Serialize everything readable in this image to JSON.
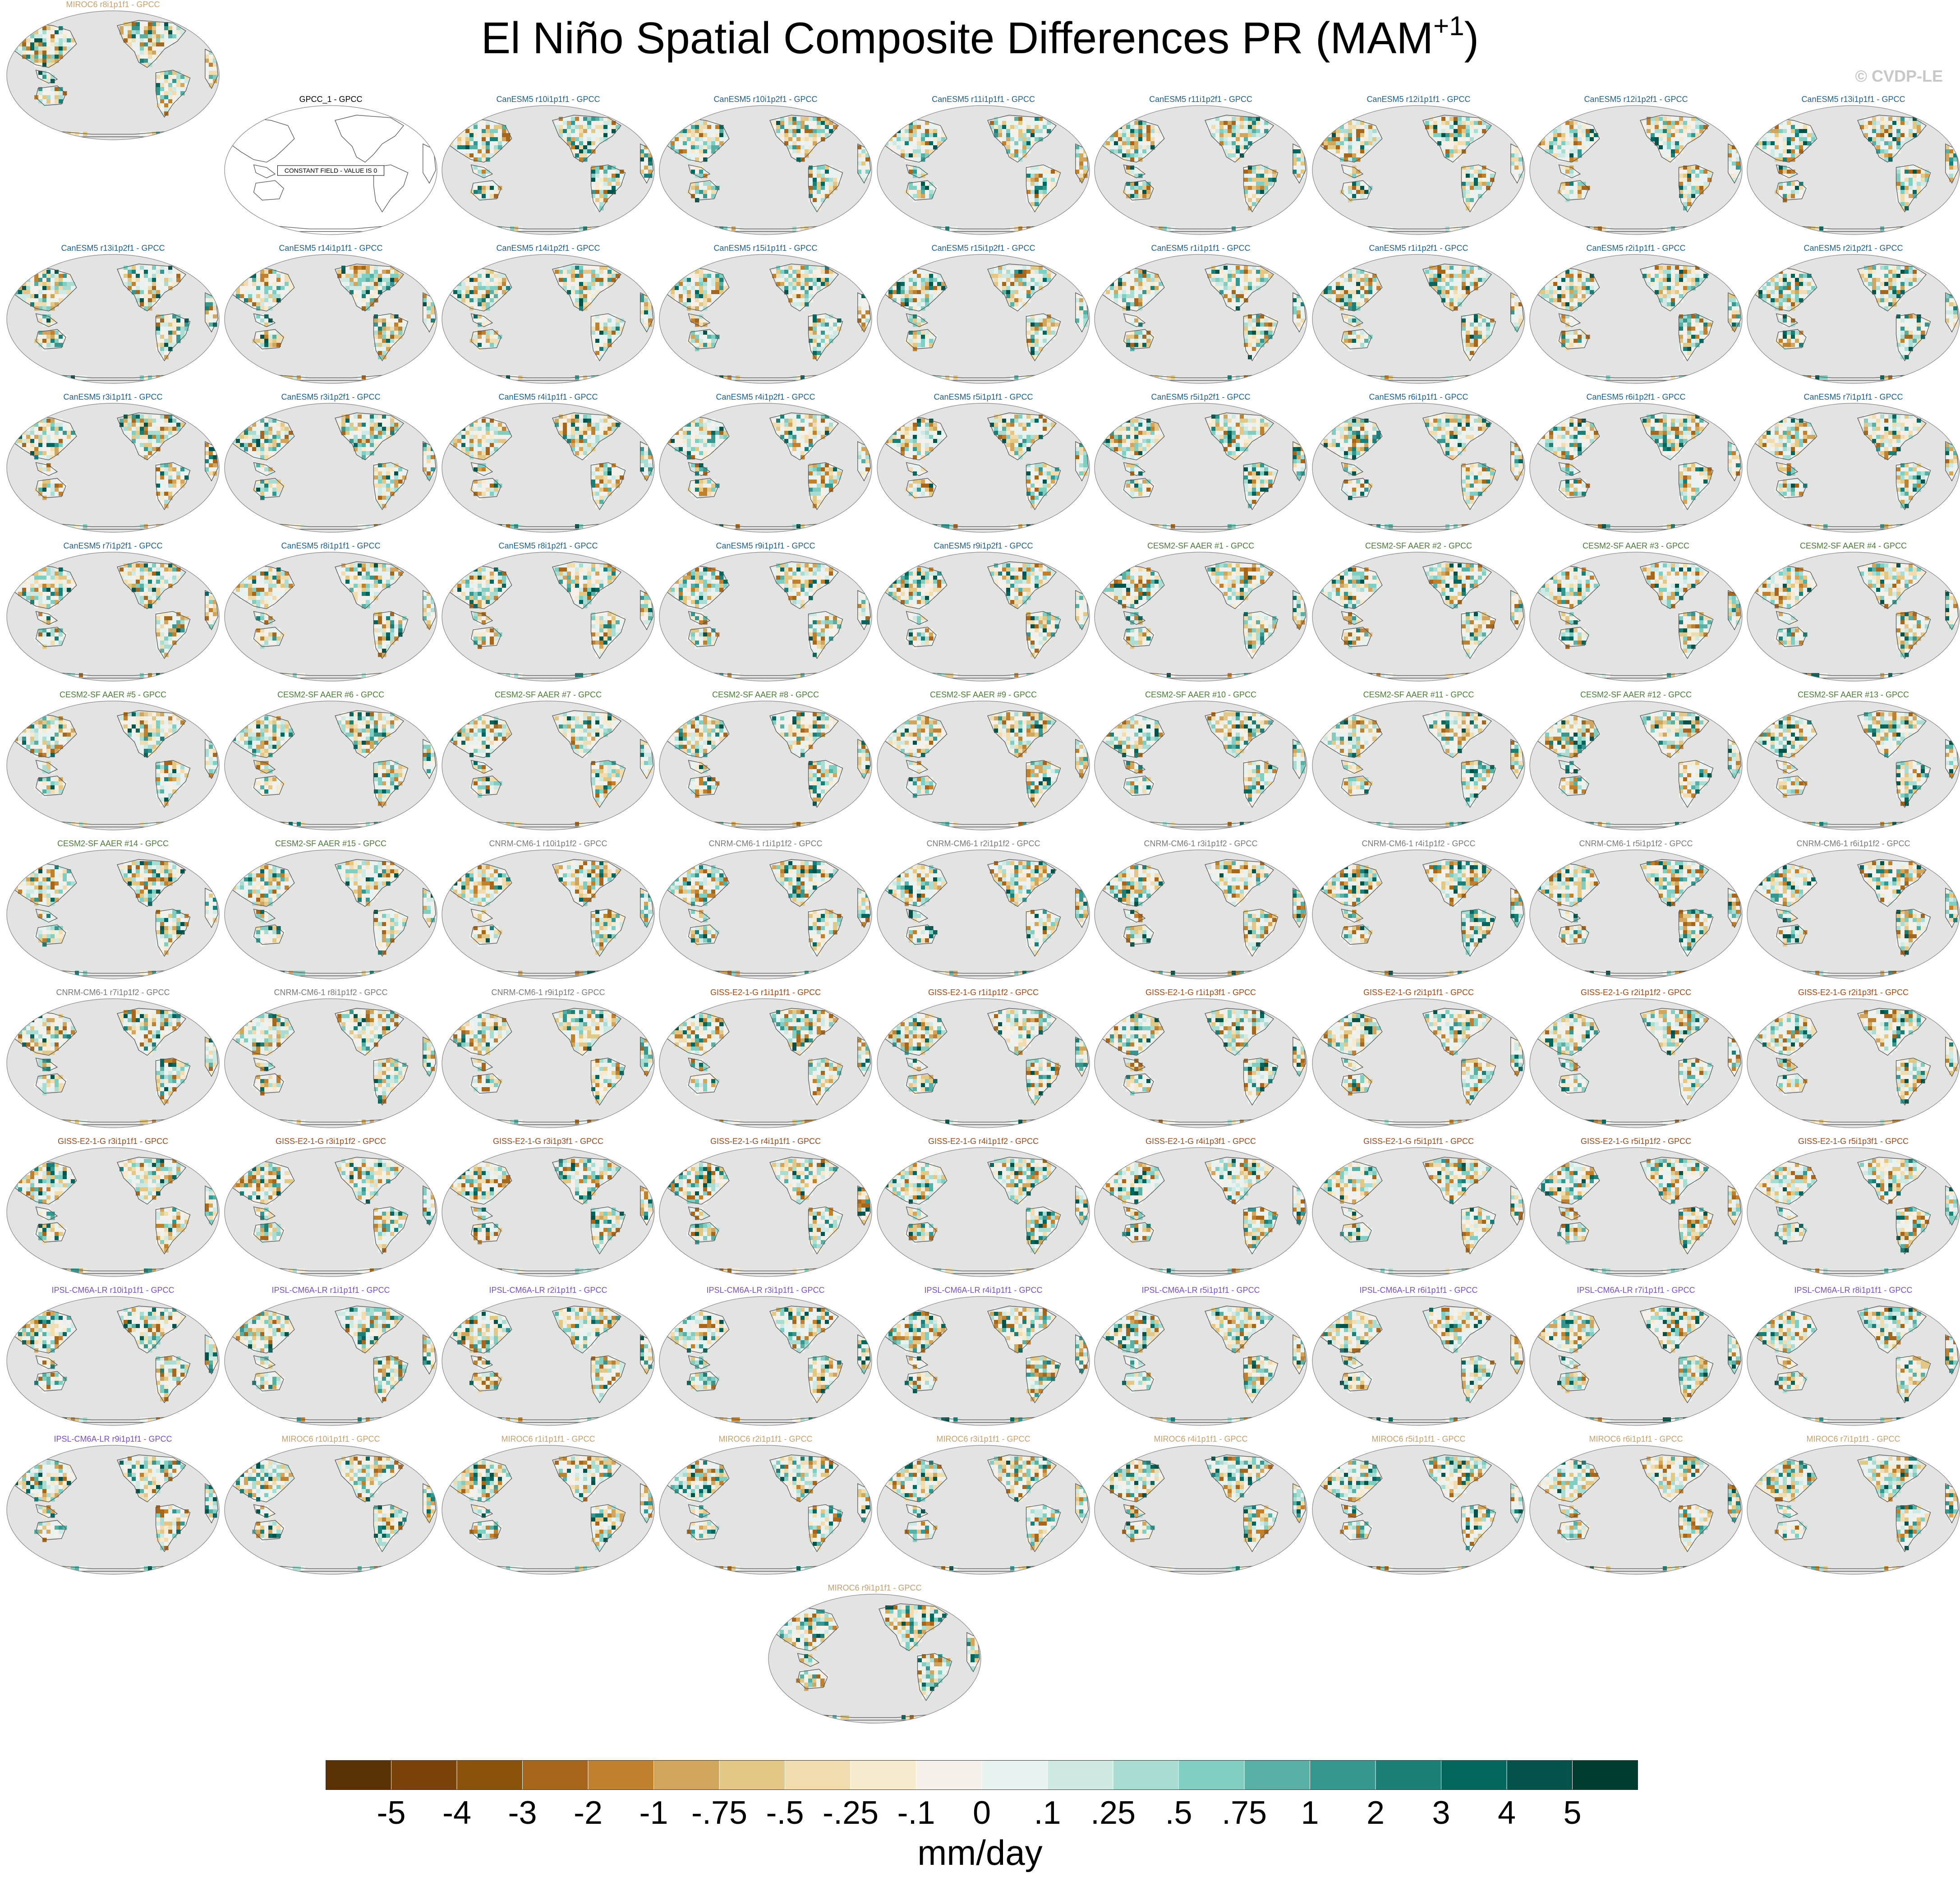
{
  "title": {
    "main": "El Niño Spatial Composite Differences PR (MAM",
    "superscript": "+1",
    "close": ")"
  },
  "watermark": "© CVDP-LE",
  "chart_data": {
    "type": "heatmap",
    "description_type": "map-panels",
    "units": "mm/day",
    "colorbar": {
      "tick_labels": [
        "-5",
        "-4",
        "-3",
        "-2",
        "-1",
        "-.75",
        "-.5",
        "-.25",
        "-.1",
        "0",
        ".1",
        ".25",
        ".5",
        ".75",
        "1",
        "2",
        "3",
        "4",
        "5"
      ],
      "colors": [
        "#5a3005",
        "#7a4208",
        "#8c510a",
        "#a6661b",
        "#bf812d",
        "#d2a55c",
        "#e3c785",
        "#f0dcae",
        "#f6ebcf",
        "#f5f0ea",
        "#e8f2f0",
        "#cfe9e4",
        "#a9dcd3",
        "#80cdc1",
        "#58b0a4",
        "#35978f",
        "#1c7f77",
        "#01665e",
        "#03534a",
        "#003c30"
      ]
    },
    "panels": [
      {
        "title": "GPCC_1 - GPCC",
        "group": "obs",
        "constant": true,
        "note": "CONSTANT FIELD - VALUE IS 0"
      },
      {
        "title": "CanESM5 r10i1p1f1 - GPCC",
        "group": "CanESM5"
      },
      {
        "title": "CanESM5 r10i1p2f1 - GPCC",
        "group": "CanESM5"
      },
      {
        "title": "CanESM5 r11i1p1f1 - GPCC",
        "group": "CanESM5"
      },
      {
        "title": "CanESM5 r11i1p2f1 - GPCC",
        "group": "CanESM5"
      },
      {
        "title": "CanESM5 r12i1p1f1 - GPCC",
        "group": "CanESM5"
      },
      {
        "title": "CanESM5 r12i1p2f1 - GPCC",
        "group": "CanESM5"
      },
      {
        "title": "CanESM5 r13i1p1f1 - GPCC",
        "group": "CanESM5"
      },
      {
        "title": "CanESM5 r13i1p2f1 - GPCC",
        "group": "CanESM5"
      },
      {
        "title": "CanESM5 r14i1p1f1 - GPCC",
        "group": "CanESM5"
      },
      {
        "title": "CanESM5 r14i1p2f1 - GPCC",
        "group": "CanESM5"
      },
      {
        "title": "CanESM5 r15i1p1f1 - GPCC",
        "group": "CanESM5"
      },
      {
        "title": "CanESM5 r15i1p2f1 - GPCC",
        "group": "CanESM5"
      },
      {
        "title": "CanESM5 r1i1p1f1 - GPCC",
        "group": "CanESM5"
      },
      {
        "title": "CanESM5 r1i1p2f1 - GPCC",
        "group": "CanESM5"
      },
      {
        "title": "CanESM5 r2i1p1f1 - GPCC",
        "group": "CanESM5"
      },
      {
        "title": "CanESM5 r2i1p2f1 - GPCC",
        "group": "CanESM5"
      },
      {
        "title": "CanESM5 r3i1p1f1 - GPCC",
        "group": "CanESM5"
      },
      {
        "title": "CanESM5 r3i1p2f1 - GPCC",
        "group": "CanESM5"
      },
      {
        "title": "CanESM5 r4i1p1f1 - GPCC",
        "group": "CanESM5"
      },
      {
        "title": "CanESM5 r4i1p2f1 - GPCC",
        "group": "CanESM5"
      },
      {
        "title": "CanESM5 r5i1p1f1 - GPCC",
        "group": "CanESM5"
      },
      {
        "title": "CanESM5 r5i1p2f1 - GPCC",
        "group": "CanESM5"
      },
      {
        "title": "CanESM5 r6i1p1f1 - GPCC",
        "group": "CanESM5"
      },
      {
        "title": "CanESM5 r6i1p2f1 - GPCC",
        "group": "CanESM5"
      },
      {
        "title": "CanESM5 r7i1p1f1 - GPCC",
        "group": "CanESM5"
      },
      {
        "title": "CanESM5 r7i1p2f1 - GPCC",
        "group": "CanESM5"
      },
      {
        "title": "CanESM5 r8i1p1f1 - GPCC",
        "group": "CanESM5"
      },
      {
        "title": "CanESM5 r8i1p2f1 - GPCC",
        "group": "CanESM5"
      },
      {
        "title": "CanESM5 r9i1p1f1 - GPCC",
        "group": "CanESM5"
      },
      {
        "title": "CanESM5 r9i1p2f1 - GPCC",
        "group": "CanESM5"
      },
      {
        "title": "CESM2-SF AAER #1 - GPCC",
        "group": "CESM2"
      },
      {
        "title": "CESM2-SF AAER #2 - GPCC",
        "group": "CESM2"
      },
      {
        "title": "CESM2-SF AAER #3 - GPCC",
        "group": "CESM2"
      },
      {
        "title": "CESM2-SF AAER #4 - GPCC",
        "group": "CESM2"
      },
      {
        "title": "CESM2-SF AAER #5 - GPCC",
        "group": "CESM2"
      },
      {
        "title": "CESM2-SF AAER #6 - GPCC",
        "group": "CESM2"
      },
      {
        "title": "CESM2-SF AAER #7 - GPCC",
        "group": "CESM2"
      },
      {
        "title": "CESM2-SF AAER #8 - GPCC",
        "group": "CESM2"
      },
      {
        "title": "CESM2-SF AAER #9 - GPCC",
        "group": "CESM2"
      },
      {
        "title": "CESM2-SF AAER #10 - GPCC",
        "group": "CESM2"
      },
      {
        "title": "CESM2-SF AAER #11 - GPCC",
        "group": "CESM2"
      },
      {
        "title": "CESM2-SF AAER #12 - GPCC",
        "group": "CESM2"
      },
      {
        "title": "CESM2-SF AAER #13 - GPCC",
        "group": "CESM2"
      },
      {
        "title": "CESM2-SF AAER #14 - GPCC",
        "group": "CESM2"
      },
      {
        "title": "CESM2-SF AAER #15 - GPCC",
        "group": "CESM2"
      },
      {
        "title": "CNRM-CM6-1 r10i1p1f2 - GPCC",
        "group": "CNRM"
      },
      {
        "title": "CNRM-CM6-1 r1i1p1f2 - GPCC",
        "group": "CNRM"
      },
      {
        "title": "CNRM-CM6-1 r2i1p1f2 - GPCC",
        "group": "CNRM"
      },
      {
        "title": "CNRM-CM6-1 r3i1p1f2 - GPCC",
        "group": "CNRM"
      },
      {
        "title": "CNRM-CM6-1 r4i1p1f2 - GPCC",
        "group": "CNRM"
      },
      {
        "title": "CNRM-CM6-1 r5i1p1f2 - GPCC",
        "group": "CNRM"
      },
      {
        "title": "CNRM-CM6-1 r6i1p1f2 - GPCC",
        "group": "CNRM"
      },
      {
        "title": "CNRM-CM6-1 r7i1p1f2 - GPCC",
        "group": "CNRM"
      },
      {
        "title": "CNRM-CM6-1 r8i1p1f2 - GPCC",
        "group": "CNRM"
      },
      {
        "title": "CNRM-CM6-1 r9i1p1f2 - GPCC",
        "group": "CNRM"
      },
      {
        "title": "GISS-E2-1-G r1i1p1f1 - GPCC",
        "group": "GISS"
      },
      {
        "title": "GISS-E2-1-G r1i1p1f2 - GPCC",
        "group": "GISS"
      },
      {
        "title": "GISS-E2-1-G r1i1p3f1 - GPCC",
        "group": "GISS"
      },
      {
        "title": "GISS-E2-1-G r2i1p1f1 - GPCC",
        "group": "GISS"
      },
      {
        "title": "GISS-E2-1-G r2i1p1f2 - GPCC",
        "group": "GISS"
      },
      {
        "title": "GISS-E2-1-G r2i1p3f1 - GPCC",
        "group": "GISS"
      },
      {
        "title": "GISS-E2-1-G r3i1p1f1 - GPCC",
        "group": "GISS"
      },
      {
        "title": "GISS-E2-1-G r3i1p1f2 - GPCC",
        "group": "GISS"
      },
      {
        "title": "GISS-E2-1-G r3i1p3f1 - GPCC",
        "group": "GISS"
      },
      {
        "title": "GISS-E2-1-G r4i1p1f1 - GPCC",
        "group": "GISS"
      },
      {
        "title": "GISS-E2-1-G r4i1p1f2 - GPCC",
        "group": "GISS"
      },
      {
        "title": "GISS-E2-1-G r4i1p3f1 - GPCC",
        "group": "GISS"
      },
      {
        "title": "GISS-E2-1-G r5i1p1f1 - GPCC",
        "group": "GISS"
      },
      {
        "title": "GISS-E2-1-G r5i1p1f2 - GPCC",
        "group": "GISS"
      },
      {
        "title": "GISS-E2-1-G r5i1p3f1 - GPCC",
        "group": "GISS"
      },
      {
        "title": "IPSL-CM6A-LR r10i1p1f1 - GPCC",
        "group": "IPSL"
      },
      {
        "title": "IPSL-CM6A-LR r1i1p1f1 - GPCC",
        "group": "IPSL"
      },
      {
        "title": "IPSL-CM6A-LR r2i1p1f1 - GPCC",
        "group": "IPSL"
      },
      {
        "title": "IPSL-CM6A-LR r3i1p1f1 - GPCC",
        "group": "IPSL"
      },
      {
        "title": "IPSL-CM6A-LR r4i1p1f1 - GPCC",
        "group": "IPSL"
      },
      {
        "title": "IPSL-CM6A-LR r5i1p1f1 - GPCC",
        "group": "IPSL"
      },
      {
        "title": "IPSL-CM6A-LR r6i1p1f1 - GPCC",
        "group": "IPSL"
      },
      {
        "title": "IPSL-CM6A-LR r7i1p1f1 - GPCC",
        "group": "IPSL"
      },
      {
        "title": "IPSL-CM6A-LR r8i1p1f1 - GPCC",
        "group": "IPSL"
      },
      {
        "title": "IPSL-CM6A-LR r9i1p1f1 - GPCC",
        "group": "IPSL"
      },
      {
        "title": "MIROC6 r10i1p1f1 - GPCC",
        "group": "MIROC6"
      },
      {
        "title": "MIROC6 r1i1p1f1 - GPCC",
        "group": "MIROC6"
      },
      {
        "title": "MIROC6 r2i1p1f1 - GPCC",
        "group": "MIROC6"
      },
      {
        "title": "MIROC6 r3i1p1f1 - GPCC",
        "group": "MIROC6"
      },
      {
        "title": "MIROC6 r4i1p1f1 - GPCC",
        "group": "MIROC6"
      },
      {
        "title": "MIROC6 r5i1p1f1 - GPCC",
        "group": "MIROC6"
      },
      {
        "title": "MIROC6 r6i1p1f1 - GPCC",
        "group": "MIROC6"
      },
      {
        "title": "MIROC6 r7i1p1f1 - GPCC",
        "group": "MIROC6"
      },
      {
        "title": "MIROC6 r8i1p1f1 - GPCC",
        "group": "MIROC6"
      },
      {
        "title": "MIROC6 r9i1p1f1 - GPCC",
        "group": "MIROC6"
      }
    ],
    "group_colors": {
      "obs": "#000000",
      "CanESM5": "#1f5f8b",
      "CESM2": "#4d7a3a",
      "CNRM": "#7a7a7a",
      "GISS": "#9c4a1a",
      "IPSL": "#7a4fc2",
      "MIROC6": "#c8a070"
    }
  }
}
